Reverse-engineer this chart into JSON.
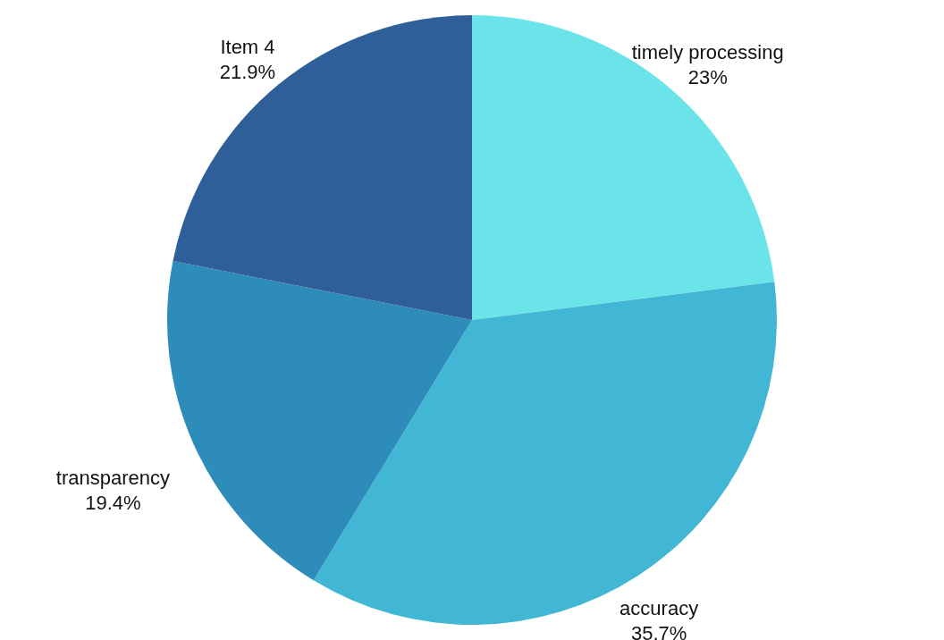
{
  "chart_data": {
    "type": "pie",
    "categories": [
      "timely processing",
      "accuracy",
      "transparency",
      "Item 4"
    ],
    "values": [
      23,
      35.7,
      19.4,
      21.9
    ],
    "value_labels": [
      "23%",
      "35.7%",
      "19.4%",
      "21.9%"
    ],
    "colors": [
      "#6ae4e8",
      "#42b6d5",
      "#2d8cba",
      "#2e5f98"
    ]
  }
}
